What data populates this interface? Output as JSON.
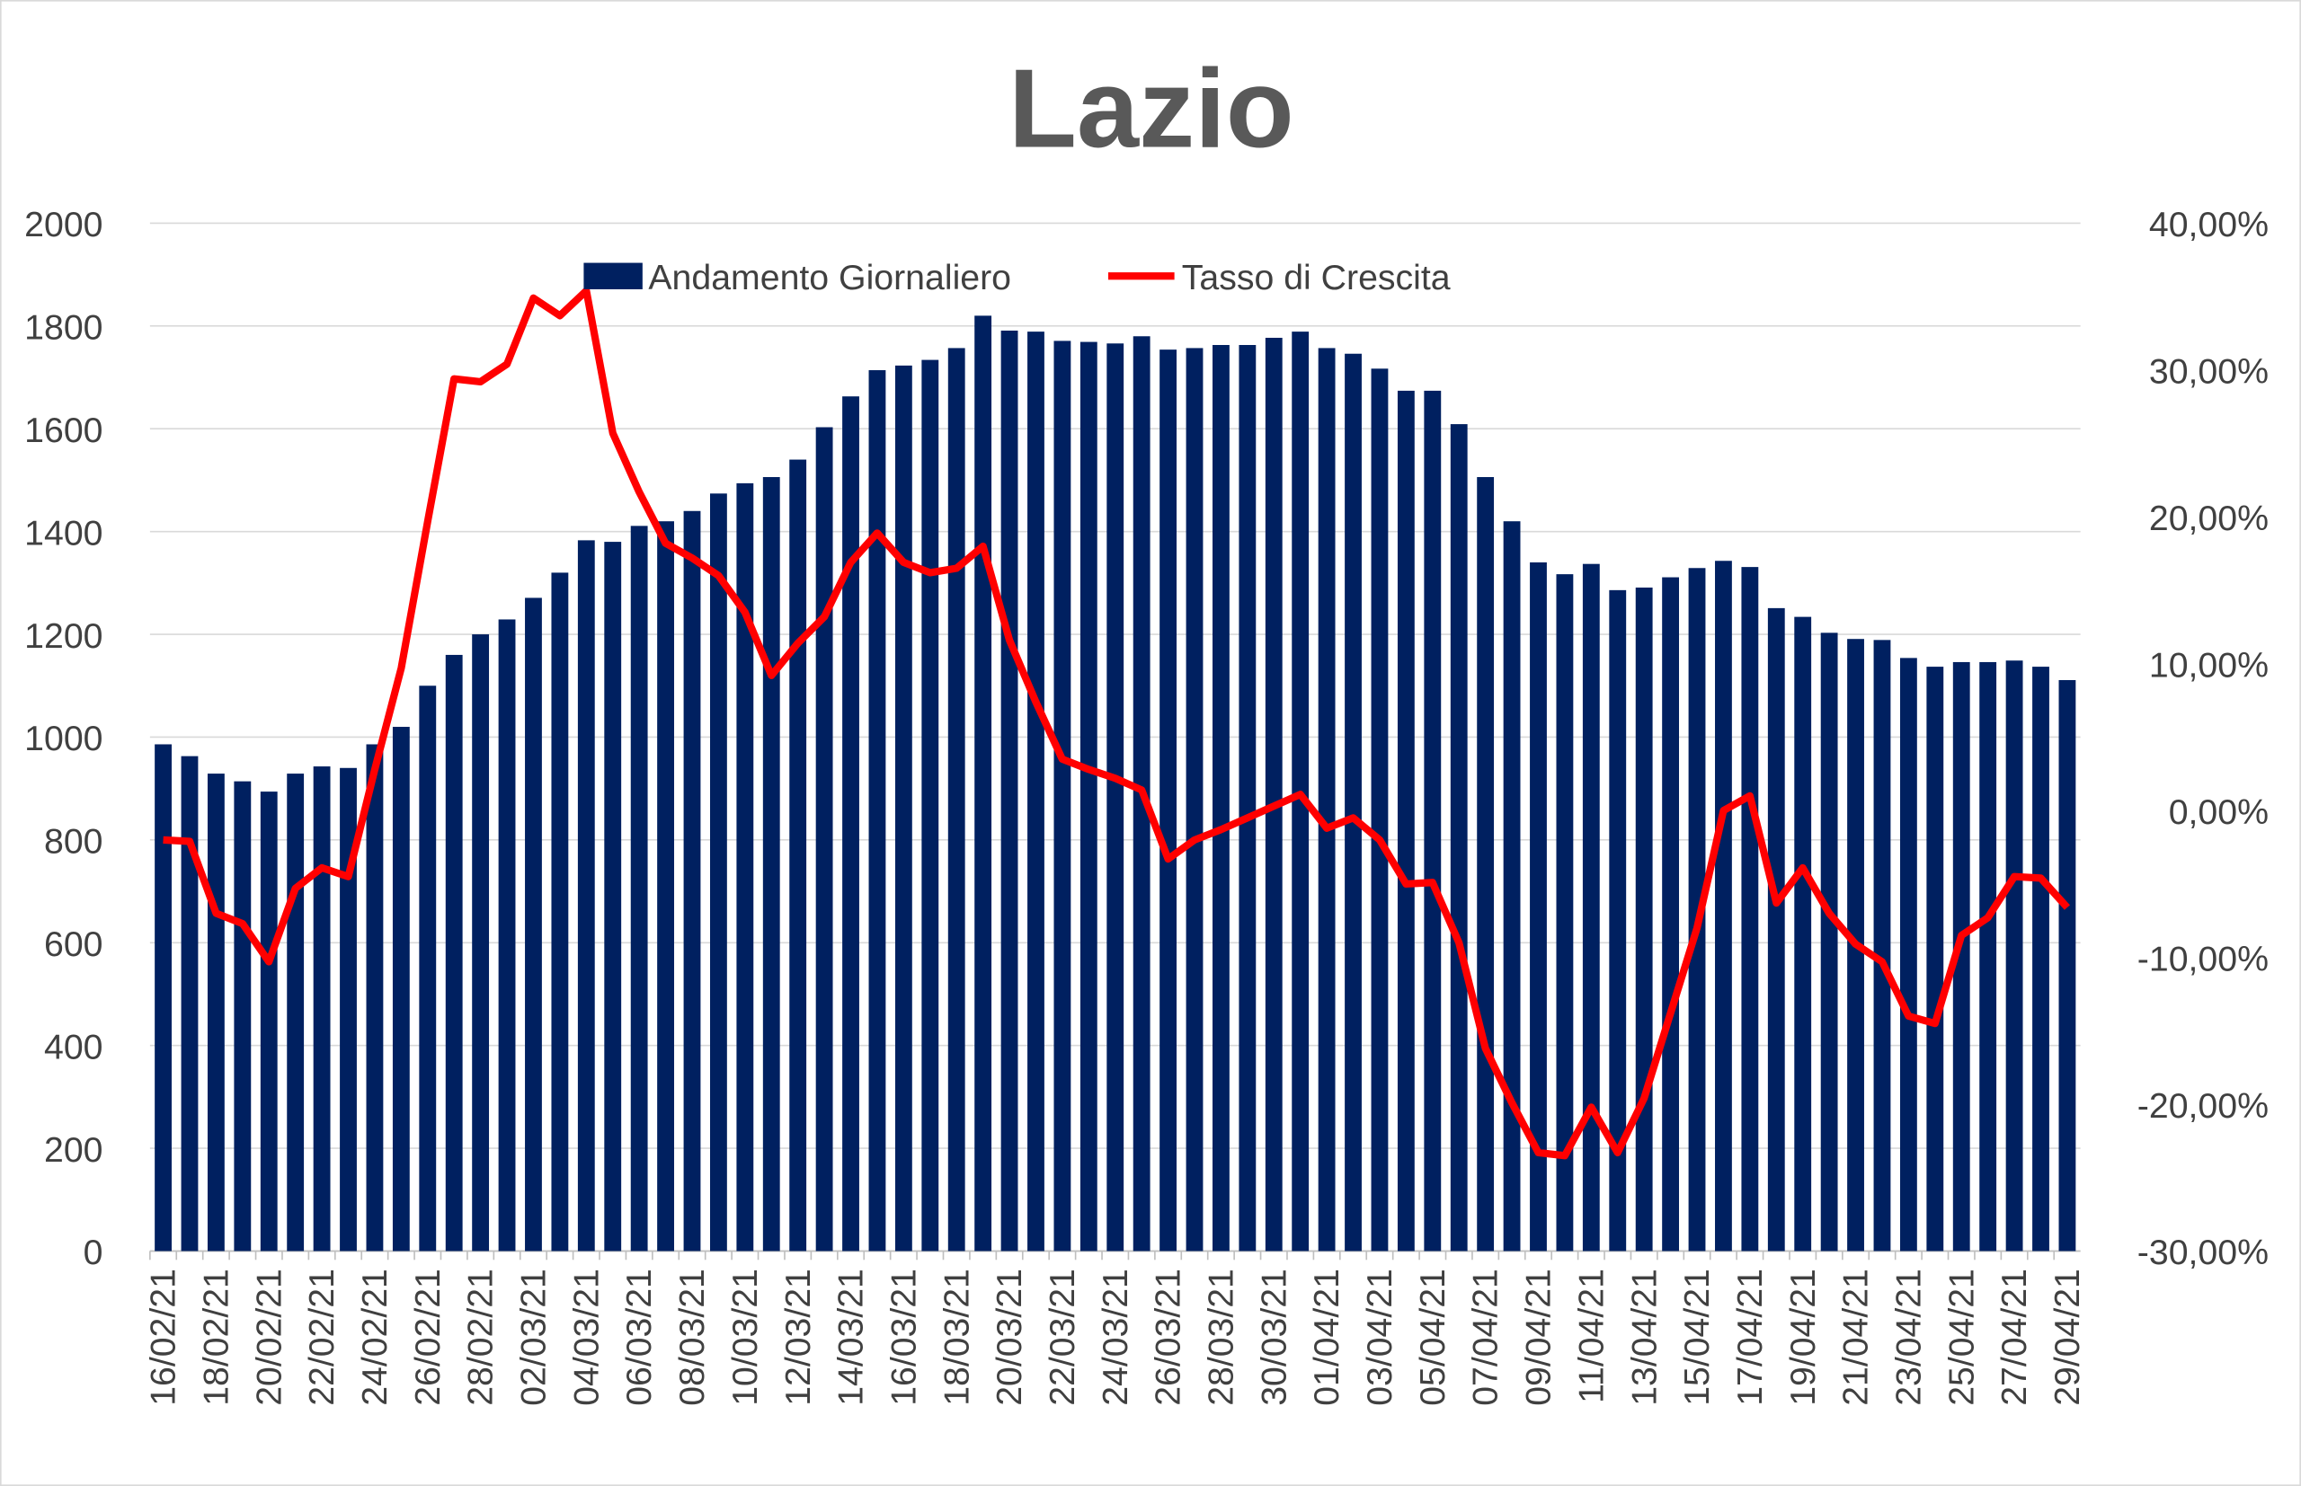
{
  "chart_data": {
    "type": "bar-line",
    "title": "Lazio",
    "categories": [
      "16/02/21",
      null,
      "18/02/21",
      null,
      "20/02/21",
      null,
      "22/02/21",
      null,
      "24/02/21",
      null,
      "26/02/21",
      null,
      "28/02/21",
      null,
      "02/03/21",
      null,
      "04/03/21",
      null,
      "06/03/21",
      null,
      "08/03/21",
      null,
      "10/03/21",
      null,
      "12/03/21",
      null,
      "14/03/21",
      null,
      "16/03/21",
      null,
      "18/03/21",
      null,
      "20/03/21",
      null,
      "22/03/21",
      null,
      "24/03/21",
      null,
      "26/03/21",
      null,
      "28/03/21",
      null,
      "30/03/21",
      null,
      "01/04/21",
      null,
      "03/04/21",
      null,
      "05/04/21",
      null,
      "07/04/21",
      null,
      "09/04/21",
      null,
      "11/04/21",
      null,
      "13/04/21",
      null,
      "15/04/21",
      null,
      "17/04/21",
      null,
      "19/04/21",
      null,
      "21/04/21",
      null,
      "23/04/21",
      null,
      "25/04/21",
      null,
      "27/04/21",
      null,
      "29/04/21"
    ],
    "series": [
      {
        "name": "Andamento Giornaliero",
        "color": "#002060",
        "type": "bar",
        "values": [
          986,
          963,
          929,
          914,
          894,
          929,
          943,
          940,
          986,
          1020,
          1100,
          1160,
          1200,
          1229,
          1271,
          1320,
          1383,
          1380,
          1411,
          1420,
          1440,
          1474,
          1494,
          1506,
          1540,
          1603,
          1663,
          1714,
          1723,
          1734,
          1757,
          1820,
          1791,
          1789,
          1771,
          1769,
          1766,
          1780,
          1754,
          1757,
          1763,
          1763,
          1777,
          1789,
          1757,
          1746,
          1717,
          1674,
          1674,
          1609,
          1506,
          1420,
          1340,
          1317,
          1337,
          1286,
          1291,
          1311,
          1329,
          1343,
          1331,
          1251,
          1234,
          1203,
          1191,
          1189,
          1154,
          1137,
          1146,
          1146,
          1149,
          1137,
          1111
        ]
      },
      {
        "name": "Tasso di Crescita",
        "color": "#ff0000",
        "type": "line",
        "axis": "y2",
        "values": [
          -2.0,
          -2.1,
          -7.0,
          -7.7,
          -10.3,
          -5.3,
          -3.9,
          -4.5,
          2.8,
          9.7,
          19.7,
          29.4,
          29.2,
          30.4,
          34.9,
          33.7,
          35.4,
          25.7,
          21.7,
          18.2,
          17.2,
          16.0,
          13.5,
          9.2,
          11.4,
          13.2,
          16.9,
          18.9,
          16.9,
          16.2,
          16.5,
          18.0,
          11.6,
          7.4,
          3.5,
          2.8,
          2.2,
          1.4,
          -3.3,
          -2.0,
          -1.3,
          -0.5,
          0.3,
          1.1,
          -1.2,
          -0.5,
          -2.0,
          -5.0,
          -4.9,
          -9.0,
          -16.2,
          -19.9,
          -23.3,
          -23.5,
          -20.2,
          -23.3,
          -19.6,
          -13.8,
          -8.0,
          0.0,
          1.0,
          -6.3,
          -3.9,
          -7.0,
          -9.1,
          -10.3,
          -14.0,
          -14.5,
          -8.5,
          -7.3,
          -4.5,
          -4.6,
          -6.6
        ]
      }
    ],
    "ylim": [
      0,
      2000
    ],
    "yticks": [
      0,
      200,
      400,
      600,
      800,
      1000,
      1200,
      1400,
      1600,
      1800,
      2000
    ],
    "y2lim": [
      -30,
      40
    ],
    "y2ticks": [
      {
        "value": -30,
        "label": "-30,00%"
      },
      {
        "value": -20,
        "label": "-20,00%"
      },
      {
        "value": -10,
        "label": "-10,00%"
      },
      {
        "value": 0,
        "label": "0,00%"
      },
      {
        "value": 10,
        "label": "10,00%"
      },
      {
        "value": 20,
        "label": "20,00%"
      },
      {
        "value": 30,
        "label": "30,00%"
      },
      {
        "value": 40,
        "label": "40,00%"
      }
    ],
    "grid": true,
    "legend": "top"
  }
}
